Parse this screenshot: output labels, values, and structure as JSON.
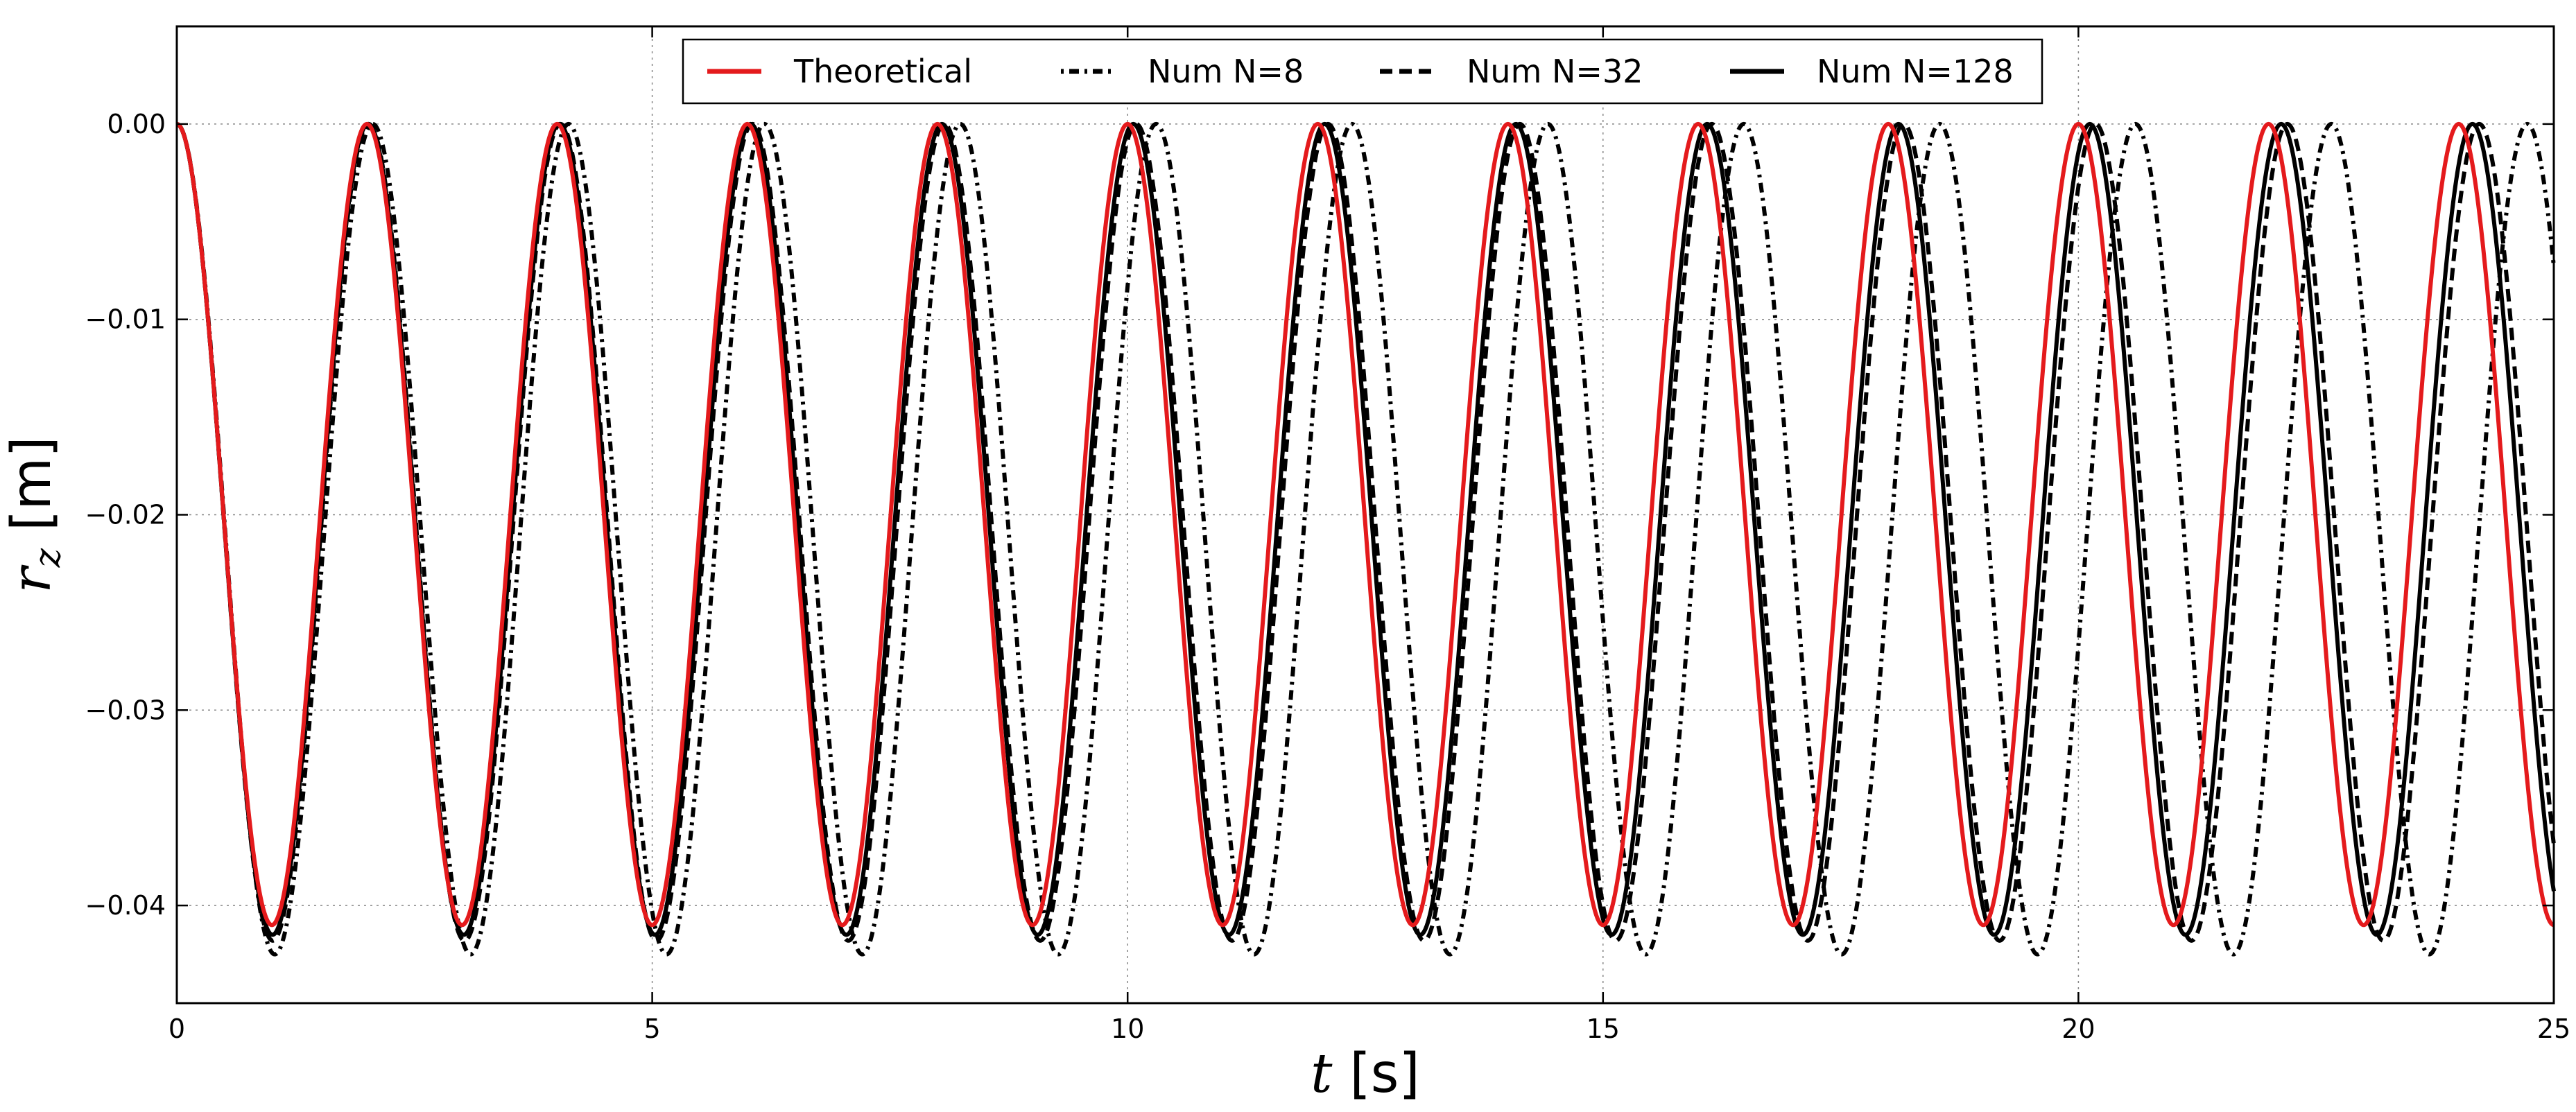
{
  "chart_data": {
    "type": "line",
    "title": "",
    "xlabel": {
      "symbol": "t",
      "unit": "[s]"
    },
    "ylabel": {
      "symbol": "r",
      "subscript": "z",
      "unit": "[m]"
    },
    "xlim": [
      0,
      25
    ],
    "ylim": [
      -0.045,
      0.005
    ],
    "xticks": [
      0,
      5,
      10,
      15,
      20,
      25
    ],
    "xtick_labels": [
      "0",
      "5",
      "10",
      "15",
      "20",
      "25"
    ],
    "yticks": [
      0.0,
      -0.01,
      -0.02,
      -0.03,
      -0.04
    ],
    "ytick_labels": [
      "0.00",
      "−0.01",
      "−0.02",
      "−0.03",
      "−0.04"
    ],
    "grid": true,
    "legend_position": "top-center",
    "series": [
      {
        "name": "Theoretical",
        "color": "#e41a1c",
        "style": "solid",
        "amplitude": 0.041,
        "period": 2.0,
        "phase": 0.0,
        "damping": 0.0
      },
      {
        "name": "Num N=8",
        "color": "#000000",
        "style": "dashdot",
        "amplitude": 0.0425,
        "period": 2.06,
        "phase": 0.0,
        "damping": 0.0
      },
      {
        "name": "Num N=32",
        "color": "#000000",
        "style": "dashed",
        "amplitude": 0.0418,
        "period": 2.018,
        "phase": 0.0,
        "damping": 0.0
      },
      {
        "name": "Num N=128",
        "color": "#000000",
        "style": "solid",
        "amplitude": 0.0415,
        "period": 2.012,
        "phase": 0.0,
        "damping": 0.0
      }
    ]
  }
}
